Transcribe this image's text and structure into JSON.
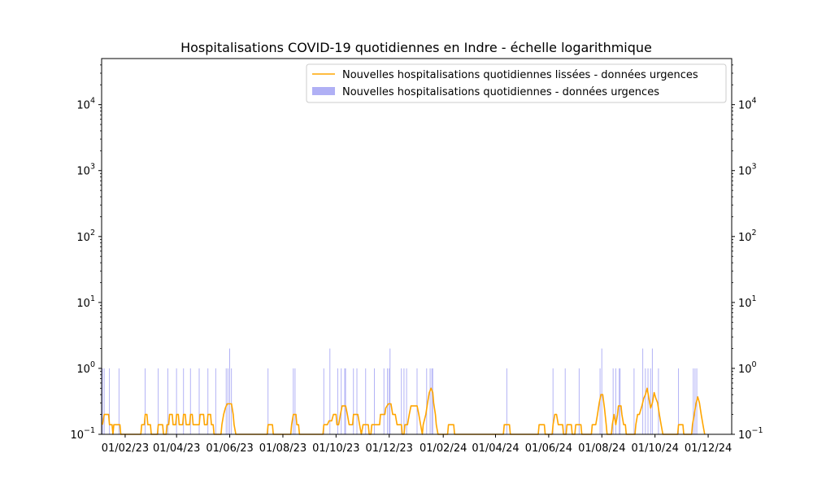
{
  "chart_data": {
    "type": "bar",
    "title": "Hospitalisations COVID-19 quotidiennes en Indre - échelle logarithmique",
    "xlabel": "",
    "ylabel": "",
    "yscale": "log",
    "ylim": [
      0.1,
      50000
    ],
    "xlim": [
      "2023-01-05",
      "2024-12-28"
    ],
    "grid": false,
    "legend_position": "top-right",
    "colors": {
      "line": "#ffa500",
      "bars": "#b0b0f5",
      "axes": "#000000",
      "legend_border": "#cccccc"
    },
    "x_ticks": [
      {
        "date": "2023-02-01",
        "label": "01/02/23"
      },
      {
        "date": "2023-04-01",
        "label": "01/04/23"
      },
      {
        "date": "2023-06-01",
        "label": "01/06/23"
      },
      {
        "date": "2023-08-01",
        "label": "01/08/23"
      },
      {
        "date": "2023-10-01",
        "label": "01/10/23"
      },
      {
        "date": "2023-12-01",
        "label": "01/12/23"
      },
      {
        "date": "2024-02-01",
        "label": "01/02/24"
      },
      {
        "date": "2024-04-01",
        "label": "01/04/24"
      },
      {
        "date": "2024-06-01",
        "label": "01/06/24"
      },
      {
        "date": "2024-08-01",
        "label": "01/08/24"
      },
      {
        "date": "2024-10-01",
        "label": "01/10/24"
      },
      {
        "date": "2024-12-01",
        "label": "01/12/24"
      }
    ],
    "y_ticks": [
      {
        "value": 0.1,
        "base": "10",
        "exp": "−1"
      },
      {
        "value": 1,
        "base": "10",
        "exp": "0"
      },
      {
        "value": 10,
        "base": "10",
        "exp": "1"
      },
      {
        "value": 100,
        "base": "10",
        "exp": "2"
      },
      {
        "value": 1000,
        "base": "10",
        "exp": "3"
      },
      {
        "value": 10000,
        "base": "10",
        "exp": "4"
      }
    ],
    "series": [
      {
        "name": "Nouvelles hospitalisations quotidiennes lissées - données urgences",
        "kind": "line",
        "points": [
          [
            "2023-01-06",
            0.14
          ],
          [
            "2023-01-08",
            0.2
          ],
          [
            "2023-01-13",
            0.2
          ],
          [
            "2023-01-14",
            0.14
          ],
          [
            "2023-01-17",
            0.14
          ],
          [
            "2023-01-18",
            0.1
          ],
          [
            "2023-01-19",
            0.14
          ],
          [
            "2023-01-26",
            0.14
          ],
          [
            "2023-01-27",
            0.1
          ],
          [
            "2023-02-19",
            0.1
          ],
          [
            "2023-02-20",
            0.14
          ],
          [
            "2023-02-23",
            0.14
          ],
          [
            "2023-02-24",
            0.2
          ],
          [
            "2023-02-26",
            0.2
          ],
          [
            "2023-02-27",
            0.14
          ],
          [
            "2023-03-02",
            0.14
          ],
          [
            "2023-03-03",
            0.1
          ],
          [
            "2023-03-10",
            0.1
          ],
          [
            "2023-03-11",
            0.14
          ],
          [
            "2023-03-16",
            0.14
          ],
          [
            "2023-03-17",
            0.1
          ],
          [
            "2023-03-20",
            0.1
          ],
          [
            "2023-03-21",
            0.14
          ],
          [
            "2023-03-23",
            0.14
          ],
          [
            "2023-03-24",
            0.2
          ],
          [
            "2023-03-27",
            0.2
          ],
          [
            "2023-03-28",
            0.14
          ],
          [
            "2023-03-31",
            0.14
          ],
          [
            "2023-04-01",
            0.2
          ],
          [
            "2023-04-03",
            0.2
          ],
          [
            "2023-04-04",
            0.14
          ],
          [
            "2023-04-08",
            0.14
          ],
          [
            "2023-04-09",
            0.2
          ],
          [
            "2023-04-11",
            0.2
          ],
          [
            "2023-04-12",
            0.14
          ],
          [
            "2023-04-16",
            0.14
          ],
          [
            "2023-04-17",
            0.2
          ],
          [
            "2023-04-19",
            0.2
          ],
          [
            "2023-04-20",
            0.14
          ],
          [
            "2023-04-27",
            0.14
          ],
          [
            "2023-04-28",
            0.2
          ],
          [
            "2023-05-02",
            0.2
          ],
          [
            "2023-05-03",
            0.14
          ],
          [
            "2023-05-06",
            0.14
          ],
          [
            "2023-05-07",
            0.2
          ],
          [
            "2023-05-10",
            0.2
          ],
          [
            "2023-05-11",
            0.14
          ],
          [
            "2023-05-13",
            0.14
          ],
          [
            "2023-05-14",
            0.1
          ],
          [
            "2023-05-22",
            0.1
          ],
          [
            "2023-05-23",
            0.14
          ],
          [
            "2023-05-25",
            0.2
          ],
          [
            "2023-05-27",
            0.25
          ],
          [
            "2023-05-29",
            0.29
          ],
          [
            "2023-06-03",
            0.29
          ],
          [
            "2023-06-05",
            0.2
          ],
          [
            "2023-06-06",
            0.14
          ],
          [
            "2023-06-08",
            0.1
          ],
          [
            "2023-07-14",
            0.1
          ],
          [
            "2023-07-15",
            0.14
          ],
          [
            "2023-07-20",
            0.14
          ],
          [
            "2023-07-21",
            0.1
          ],
          [
            "2023-08-10",
            0.1
          ],
          [
            "2023-08-11",
            0.14
          ],
          [
            "2023-08-13",
            0.2
          ],
          [
            "2023-08-16",
            0.2
          ],
          [
            "2023-08-17",
            0.14
          ],
          [
            "2023-08-19",
            0.14
          ],
          [
            "2023-08-20",
            0.1
          ],
          [
            "2023-09-16",
            0.1
          ],
          [
            "2023-09-17",
            0.14
          ],
          [
            "2023-09-21",
            0.14
          ],
          [
            "2023-09-23",
            0.16
          ],
          [
            "2023-09-26",
            0.16
          ],
          [
            "2023-09-28",
            0.2
          ],
          [
            "2023-10-01",
            0.2
          ],
          [
            "2023-10-02",
            0.14
          ],
          [
            "2023-10-04",
            0.14
          ],
          [
            "2023-10-06",
            0.2
          ],
          [
            "2023-10-08",
            0.27
          ],
          [
            "2023-10-12",
            0.27
          ],
          [
            "2023-10-14",
            0.2
          ],
          [
            "2023-10-16",
            0.14
          ],
          [
            "2023-10-20",
            0.14
          ],
          [
            "2023-10-21",
            0.2
          ],
          [
            "2023-10-26",
            0.2
          ],
          [
            "2023-10-28",
            0.14
          ],
          [
            "2023-10-30",
            0.1
          ],
          [
            "2023-11-01",
            0.14
          ],
          [
            "2023-11-07",
            0.14
          ],
          [
            "2023-11-08",
            0.1
          ],
          [
            "2023-11-10",
            0.1
          ],
          [
            "2023-11-11",
            0.14
          ],
          [
            "2023-11-20",
            0.14
          ],
          [
            "2023-11-21",
            0.2
          ],
          [
            "2023-11-26",
            0.2
          ],
          [
            "2023-11-27",
            0.25
          ],
          [
            "2023-11-30",
            0.29
          ],
          [
            "2023-12-03",
            0.29
          ],
          [
            "2023-12-05",
            0.2
          ],
          [
            "2023-12-08",
            0.2
          ],
          [
            "2023-12-10",
            0.14
          ],
          [
            "2023-12-15",
            0.14
          ],
          [
            "2023-12-16",
            0.1
          ],
          [
            "2023-12-18",
            0.1
          ],
          [
            "2023-12-19",
            0.14
          ],
          [
            "2023-12-22",
            0.14
          ],
          [
            "2023-12-24",
            0.2
          ],
          [
            "2023-12-26",
            0.27
          ],
          [
            "2024-01-02",
            0.27
          ],
          [
            "2024-01-04",
            0.2
          ],
          [
            "2024-01-06",
            0.14
          ],
          [
            "2024-01-08",
            0.1
          ],
          [
            "2024-01-09",
            0.14
          ],
          [
            "2024-01-12",
            0.2
          ],
          [
            "2024-01-14",
            0.3
          ],
          [
            "2024-01-16",
            0.43
          ],
          [
            "2024-01-18",
            0.5
          ],
          [
            "2024-01-20",
            0.43
          ],
          [
            "2024-01-21",
            0.3
          ],
          [
            "2024-01-23",
            0.2
          ],
          [
            "2024-01-24",
            0.14
          ],
          [
            "2024-01-26",
            0.1
          ],
          [
            "2024-02-06",
            0.1
          ],
          [
            "2024-02-07",
            0.14
          ],
          [
            "2024-02-13",
            0.14
          ],
          [
            "2024-02-14",
            0.1
          ],
          [
            "2024-04-10",
            0.1
          ],
          [
            "2024-04-11",
            0.14
          ],
          [
            "2024-04-17",
            0.14
          ],
          [
            "2024-04-18",
            0.1
          ],
          [
            "2024-05-20",
            0.1
          ],
          [
            "2024-05-21",
            0.14
          ],
          [
            "2024-05-27",
            0.14
          ],
          [
            "2024-05-28",
            0.1
          ],
          [
            "2024-06-05",
            0.1
          ],
          [
            "2024-06-06",
            0.14
          ],
          [
            "2024-06-08",
            0.2
          ],
          [
            "2024-06-10",
            0.2
          ],
          [
            "2024-06-12",
            0.14
          ],
          [
            "2024-06-17",
            0.14
          ],
          [
            "2024-06-18",
            0.1
          ],
          [
            "2024-06-21",
            0.1
          ],
          [
            "2024-06-22",
            0.14
          ],
          [
            "2024-06-27",
            0.14
          ],
          [
            "2024-06-28",
            0.1
          ],
          [
            "2024-07-01",
            0.1
          ],
          [
            "2024-07-02",
            0.14
          ],
          [
            "2024-07-08",
            0.14
          ],
          [
            "2024-07-09",
            0.1
          ],
          [
            "2024-07-20",
            0.1
          ],
          [
            "2024-07-21",
            0.14
          ],
          [
            "2024-07-25",
            0.14
          ],
          [
            "2024-07-27",
            0.2
          ],
          [
            "2024-07-29",
            0.3
          ],
          [
            "2024-07-31",
            0.4
          ],
          [
            "2024-08-02",
            0.4
          ],
          [
            "2024-08-04",
            0.25
          ],
          [
            "2024-08-06",
            0.14
          ],
          [
            "2024-08-07",
            0.1
          ],
          [
            "2024-08-12",
            0.1
          ],
          [
            "2024-08-13",
            0.14
          ],
          [
            "2024-08-15",
            0.2
          ],
          [
            "2024-08-17",
            0.14
          ],
          [
            "2024-08-19",
            0.2
          ],
          [
            "2024-08-20",
            0.27
          ],
          [
            "2024-08-23",
            0.27
          ],
          [
            "2024-08-24",
            0.2
          ],
          [
            "2024-08-26",
            0.14
          ],
          [
            "2024-08-28",
            0.14
          ],
          [
            "2024-08-29",
            0.1
          ],
          [
            "2024-09-08",
            0.1
          ],
          [
            "2024-09-09",
            0.14
          ],
          [
            "2024-09-11",
            0.2
          ],
          [
            "2024-09-13",
            0.2
          ],
          [
            "2024-09-16",
            0.27
          ],
          [
            "2024-09-18",
            0.35
          ],
          [
            "2024-09-20",
            0.4
          ],
          [
            "2024-09-22",
            0.5
          ],
          [
            "2024-09-24",
            0.35
          ],
          [
            "2024-09-26",
            0.25
          ],
          [
            "2024-09-28",
            0.3
          ],
          [
            "2024-09-30",
            0.43
          ],
          [
            "2024-10-02",
            0.35
          ],
          [
            "2024-10-04",
            0.3
          ],
          [
            "2024-10-06",
            0.2
          ],
          [
            "2024-10-08",
            0.14
          ],
          [
            "2024-10-10",
            0.1
          ],
          [
            "2024-10-27",
            0.1
          ],
          [
            "2024-10-28",
            0.14
          ],
          [
            "2024-11-02",
            0.14
          ],
          [
            "2024-11-03",
            0.1
          ],
          [
            "2024-11-12",
            0.1
          ],
          [
            "2024-11-13",
            0.14
          ],
          [
            "2024-11-15",
            0.2
          ],
          [
            "2024-11-17",
            0.29
          ],
          [
            "2024-11-19",
            0.37
          ],
          [
            "2024-11-21",
            0.3
          ],
          [
            "2024-11-23",
            0.2
          ],
          [
            "2024-11-25",
            0.14
          ],
          [
            "2024-11-27",
            0.1
          ]
        ]
      },
      {
        "name": "Nouvelles hospitalisations quotidiennes - données urgences",
        "kind": "bar",
        "points": [
          [
            "2023-01-06",
            1
          ],
          [
            "2023-01-08",
            1
          ],
          [
            "2023-01-14",
            1
          ],
          [
            "2023-01-25",
            1
          ],
          [
            "2023-02-24",
            1
          ],
          [
            "2023-03-11",
            1
          ],
          [
            "2023-03-22",
            1
          ],
          [
            "2023-04-01",
            1
          ],
          [
            "2023-04-09",
            1
          ],
          [
            "2023-04-17",
            1
          ],
          [
            "2023-04-27",
            1
          ],
          [
            "2023-05-07",
            1
          ],
          [
            "2023-05-16",
            1
          ],
          [
            "2023-05-28",
            1
          ],
          [
            "2023-05-30",
            1
          ],
          [
            "2023-06-01",
            2
          ],
          [
            "2023-06-03",
            1
          ],
          [
            "2023-07-15",
            1
          ],
          [
            "2023-08-13",
            1
          ],
          [
            "2023-08-15",
            1
          ],
          [
            "2023-09-17",
            1
          ],
          [
            "2023-09-24",
            2
          ],
          [
            "2023-10-03",
            1
          ],
          [
            "2023-10-07",
            1
          ],
          [
            "2023-10-11",
            1
          ],
          [
            "2023-10-12",
            1
          ],
          [
            "2023-10-21",
            1
          ],
          [
            "2023-10-25",
            1
          ],
          [
            "2023-11-04",
            1
          ],
          [
            "2023-11-14",
            1
          ],
          [
            "2023-11-25",
            1
          ],
          [
            "2023-11-29",
            1
          ],
          [
            "2023-12-01",
            1
          ],
          [
            "2023-12-02",
            2
          ],
          [
            "2023-12-15",
            1
          ],
          [
            "2023-12-18",
            1
          ],
          [
            "2023-12-21",
            1
          ],
          [
            "2024-01-02",
            1
          ],
          [
            "2024-01-13",
            1
          ],
          [
            "2024-01-17",
            1
          ],
          [
            "2024-01-19",
            1
          ],
          [
            "2024-01-20",
            1
          ],
          [
            "2024-04-14",
            1
          ],
          [
            "2024-06-06",
            1
          ],
          [
            "2024-06-20",
            1
          ],
          [
            "2024-07-06",
            1
          ],
          [
            "2024-07-30",
            1
          ],
          [
            "2024-08-01",
            2
          ],
          [
            "2024-08-14",
            1
          ],
          [
            "2024-08-17",
            1
          ],
          [
            "2024-08-21",
            1
          ],
          [
            "2024-08-22",
            1
          ],
          [
            "2024-09-07",
            1
          ],
          [
            "2024-09-17",
            2
          ],
          [
            "2024-09-20",
            1
          ],
          [
            "2024-09-23",
            1
          ],
          [
            "2024-09-26",
            1
          ],
          [
            "2024-09-28",
            2
          ],
          [
            "2024-10-05",
            1
          ],
          [
            "2024-10-28",
            1
          ],
          [
            "2024-11-14",
            1
          ],
          [
            "2024-11-16",
            1
          ],
          [
            "2024-11-18",
            1
          ]
        ]
      }
    ]
  }
}
